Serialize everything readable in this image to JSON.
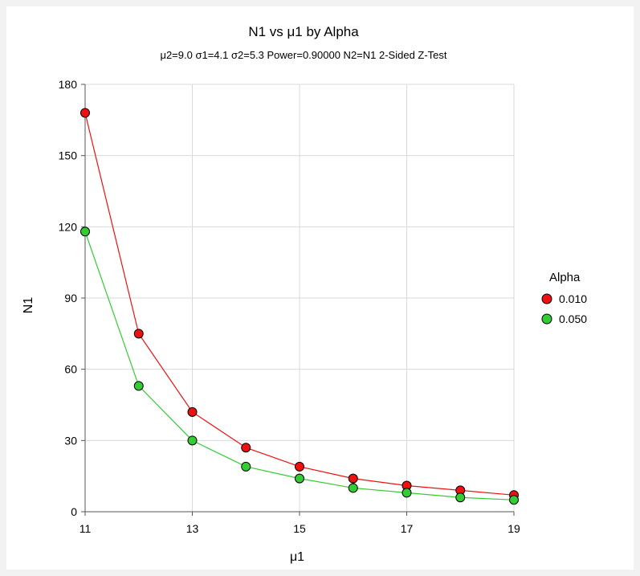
{
  "chart_data": {
    "type": "line",
    "title": "N1 vs μ1 by Alpha",
    "subtitle": "μ2=9.0 σ1=4.1 σ2=5.3 Power=0.90000 N2=N1 2-Sided Z-Test",
    "xlabel": "μ1",
    "ylabel": "N1",
    "xlim": [
      11,
      19
    ],
    "ylim": [
      0,
      180
    ],
    "xticks": [
      11,
      13,
      15,
      17,
      19
    ],
    "yticks": [
      0,
      30,
      60,
      90,
      120,
      150,
      180
    ],
    "grid": true,
    "legend": {
      "title": "Alpha",
      "position": "right"
    },
    "x": [
      11,
      12,
      13,
      14,
      15,
      16,
      17,
      18,
      19
    ],
    "series": [
      {
        "name": "0.010",
        "color": "#ee1111",
        "line_color": "#ee1111",
        "values": [
          168,
          75,
          42,
          27,
          19,
          14,
          11,
          9,
          7
        ]
      },
      {
        "name": "0.050",
        "color": "#33cc33",
        "line_color": "#33cc33",
        "values": [
          118,
          53,
          30,
          19,
          14,
          10,
          8,
          6,
          5
        ]
      }
    ]
  }
}
